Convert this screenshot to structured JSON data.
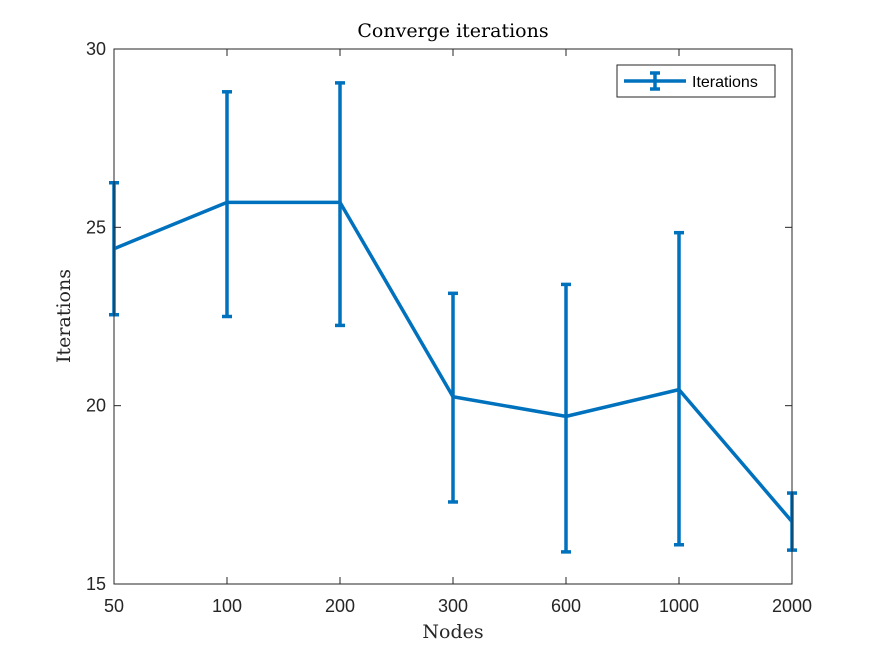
{
  "chart_data": {
    "type": "line",
    "title": "Converge iterations",
    "xlabel": "Nodes",
    "ylabel": "Iterations",
    "categories": [
      "50",
      "100",
      "200",
      "300",
      "600",
      "1000",
      "2000"
    ],
    "ylim": [
      15,
      30
    ],
    "yticks": [
      "15",
      "20",
      "25",
      "30"
    ],
    "grid": false,
    "legend_position": "top-right",
    "series": [
      {
        "name": "Iterations",
        "color": "#0072BD",
        "values": [
          24.4,
          25.7,
          25.7,
          20.25,
          19.7,
          20.45,
          16.75
        ],
        "lower": [
          22.55,
          22.5,
          22.25,
          17.3,
          15.9,
          16.1,
          15.95
        ],
        "upper": [
          26.25,
          28.8,
          29.05,
          23.15,
          23.4,
          24.85,
          17.55
        ]
      }
    ]
  }
}
